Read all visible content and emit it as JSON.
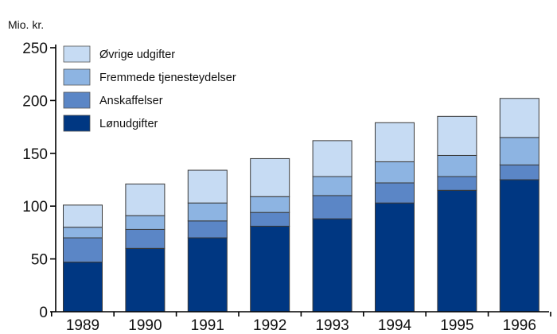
{
  "chart_data": {
    "type": "bar",
    "stacked": true,
    "unit_label": "Mio. kr.",
    "title": "",
    "xlabel": "",
    "ylabel": "",
    "ylim": [
      0,
      250
    ],
    "y_ticks": [
      0,
      50,
      100,
      150,
      200,
      250
    ],
    "grid": false,
    "legend_position": "top-left",
    "categories": [
      "1989",
      "1990",
      "1991",
      "1992",
      "1993",
      "1994",
      "1995",
      "1996"
    ],
    "series": [
      {
        "name": "Lønudgifter",
        "color": "#003782",
        "values": [
          47,
          60,
          70,
          81,
          88,
          103,
          115,
          125
        ]
      },
      {
        "name": "Anskaffelser",
        "color": "#5b86c6",
        "values": [
          23,
          18,
          16,
          13,
          22,
          19,
          13,
          14
        ]
      },
      {
        "name": "Fremmede tjenesteydelser",
        "color": "#8db4e2",
        "values": [
          10,
          13,
          17,
          15,
          18,
          20,
          20,
          26
        ]
      },
      {
        "name": "Øvrige udgifter",
        "color": "#c6dbf3",
        "values": [
          21,
          30,
          31,
          36,
          34,
          37,
          37,
          37
        ]
      }
    ],
    "legend_order": [
      3,
      2,
      1,
      0
    ]
  }
}
